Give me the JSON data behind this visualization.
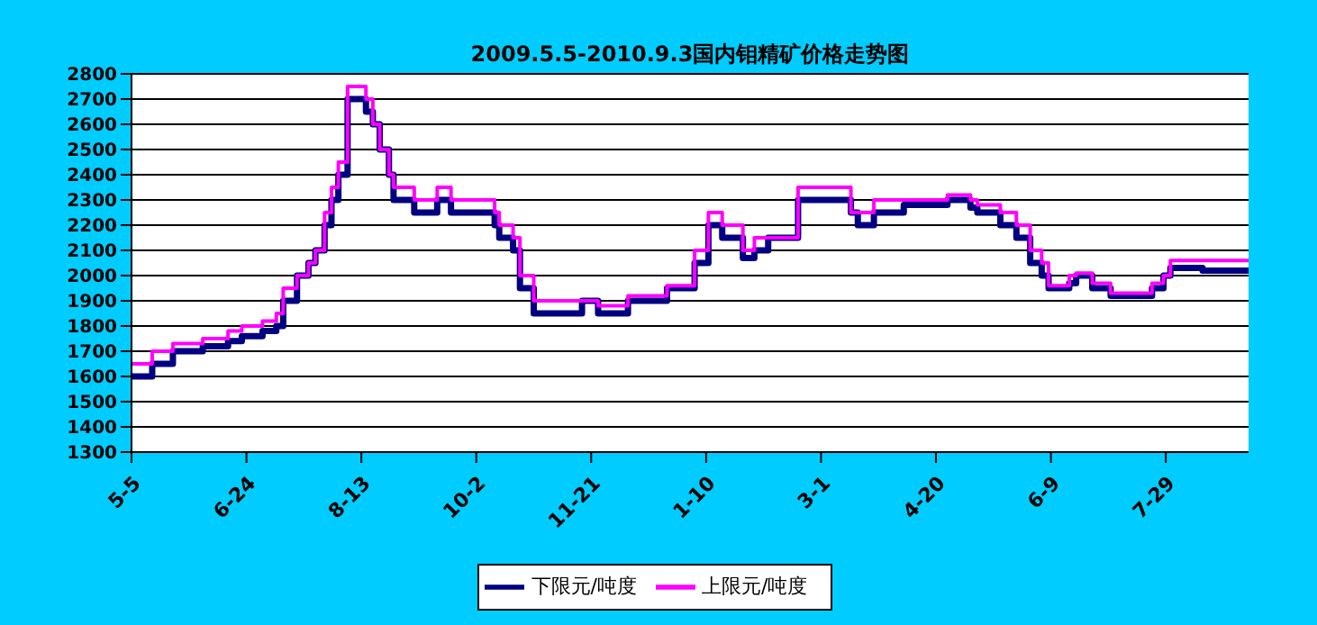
{
  "chart_data": {
    "type": "step",
    "title": "2009.5.5-2010.9.3国内钼精矿价格走势图",
    "x": [
      "2009-05-05",
      "2009-05-14",
      "2009-05-23",
      "2009-06-05",
      "2009-06-16",
      "2009-06-22",
      "2009-07-01",
      "2009-07-07",
      "2009-07-10",
      "2009-07-16",
      "2009-07-21",
      "2009-07-24",
      "2009-07-28",
      "2009-07-31",
      "2009-08-03",
      "2009-08-07",
      "2009-08-15",
      "2009-08-18",
      "2009-08-21",
      "2009-08-25",
      "2009-08-27",
      "2009-09-05",
      "2009-09-15",
      "2009-09-21",
      "2009-10-10",
      "2009-10-12",
      "2009-10-18",
      "2009-10-21",
      "2009-10-27",
      "2009-11-17",
      "2009-11-24",
      "2009-12-07",
      "2009-12-24",
      "2010-01-05",
      "2010-01-11",
      "2010-01-17",
      "2010-01-26",
      "2010-01-31",
      "2010-02-06",
      "2010-02-19",
      "2010-03-14",
      "2010-03-17",
      "2010-03-24",
      "2010-04-06",
      "2010-04-25",
      "2010-05-05",
      "2010-05-08",
      "2010-05-18",
      "2010-05-25",
      "2010-05-31",
      "2010-06-05",
      "2010-06-08",
      "2010-06-17",
      "2010-06-20",
      "2010-06-27",
      "2010-07-05",
      "2010-07-23",
      "2010-07-28",
      "2010-07-31",
      "2010-08-14",
      "2010-09-03"
    ],
    "series": [
      {
        "name": "下限元/吨度",
        "color": "#000080",
        "values": [
          1600,
          1650,
          1700,
          1720,
          1740,
          1760,
          1780,
          1800,
          1900,
          2000,
          2050,
          2100,
          2200,
          2300,
          2400,
          2700,
          2650,
          2600,
          2500,
          2400,
          2300,
          2250,
          2300,
          2250,
          2200,
          2150,
          2100,
          1950,
          1850,
          1900,
          1850,
          1900,
          1950,
          2050,
          2200,
          2150,
          2070,
          2100,
          2150,
          2300,
          2250,
          2200,
          2250,
          2280,
          2300,
          2270,
          2250,
          2200,
          2150,
          2050,
          2000,
          1950,
          1970,
          2000,
          1950,
          1920,
          1950,
          2000,
          2030,
          2020,
          2020
        ]
      },
      {
        "name": "上限元/吨度",
        "color": "#ff00ff",
        "values": [
          1650,
          1700,
          1730,
          1750,
          1780,
          1800,
          1820,
          1850,
          1950,
          2000,
          2050,
          2100,
          2250,
          2350,
          2450,
          2750,
          2700,
          2600,
          2500,
          2400,
          2350,
          2300,
          2350,
          2300,
          2250,
          2200,
          2150,
          2000,
          1900,
          1900,
          1880,
          1920,
          1960,
          2100,
          2250,
          2200,
          2100,
          2150,
          2150,
          2350,
          2250,
          2250,
          2300,
          2300,
          2320,
          2300,
          2280,
          2250,
          2200,
          2100,
          2050,
          1960,
          2000,
          2010,
          1970,
          1930,
          1970,
          2000,
          2060,
          2060,
          2060
        ]
      }
    ],
    "xlim": [
      "2009-05-05",
      "2010-09-03"
    ],
    "xticks": [
      {
        "value": "2009-05-05",
        "label": "5-5"
      },
      {
        "value": "2009-06-24",
        "label": "6-24"
      },
      {
        "value": "2009-08-13",
        "label": "8-13"
      },
      {
        "value": "2009-10-02",
        "label": "10-2"
      },
      {
        "value": "2009-11-21",
        "label": "11-21"
      },
      {
        "value": "2010-01-10",
        "label": "1-10"
      },
      {
        "value": "2010-03-01",
        "label": "3-1"
      },
      {
        "value": "2010-04-20",
        "label": "4-20"
      },
      {
        "value": "2010-06-09",
        "label": "6-9"
      },
      {
        "value": "2010-07-29",
        "label": "7-29"
      }
    ],
    "ylim": [
      1300,
      2800
    ],
    "yticks": [
      1300,
      1400,
      1500,
      1600,
      1700,
      1800,
      1900,
      2000,
      2100,
      2200,
      2300,
      2400,
      2500,
      2600,
      2700,
      2800
    ],
    "grid": "y",
    "legend": "bottom"
  }
}
